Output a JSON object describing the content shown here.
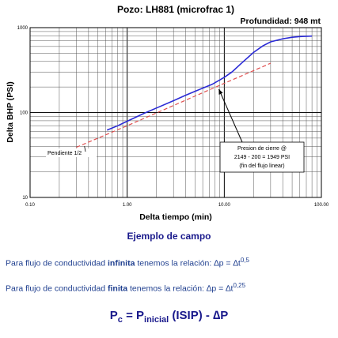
{
  "chart_data": {
    "type": "line",
    "title": "Pozo: LH881 (microfrac 1)",
    "subtitle": "Profundidad: 948 mt",
    "xlabel": "Delta tiempo (min)",
    "ylabel": "Delta BHP (PSI)",
    "xscale": "log",
    "yscale": "log",
    "xlim": [
      0.1,
      100
    ],
    "ylim": [
      10,
      1000
    ],
    "x_tick_labels": [
      "0.10",
      "1.00",
      "10.00",
      "100.00"
    ],
    "y_tick_labels": [
      "1000",
      "100",
      "10"
    ],
    "grid": true,
    "series": [
      {
        "color": "#2b2bd6",
        "style": "solid",
        "x": [
          0.62,
          0.8,
          1.0,
          1.5,
          2.0,
          3.0,
          4.0,
          5.0,
          6.0,
          7.5,
          10.0,
          12.0,
          15.0,
          20.0,
          25.0,
          30.0,
          40.0,
          50.0,
          60.0,
          70.0,
          80.0
        ],
        "y": [
          62,
          70,
          79,
          98,
          113,
          138,
          160,
          178,
          194,
          215,
          260,
          300,
          380,
          510,
          610,
          680,
          740,
          770,
          785,
          792,
          795
        ]
      },
      {
        "color": "#e05050",
        "style": "dashed",
        "x": [
          0.3,
          1.0,
          3.0,
          10.0,
          30.0
        ],
        "y": [
          39,
          70,
          121,
          221,
          381
        ]
      }
    ],
    "annotations": [
      {
        "text": [
          "Presion de cierre @",
          "2149 - 200 = 1949 PSI",
          "(fin del flujo linear)"
        ],
        "x": 8.0,
        "y": 210
      },
      {
        "text": [
          "Pendiente 1/2"
        ],
        "x": 0.35,
        "y": 40
      }
    ]
  },
  "caption": "Ejemplo de campo",
  "line1": {
    "pre": "Para flujo de conductividad ",
    "bold": "infinita",
    "post": " tenemos la relación: ",
    "eq": "∆p = ∆t",
    "exp": "0,5"
  },
  "line2": {
    "pre": "Para flujo de conductividad ",
    "bold": "finita",
    "post": " tenemos la relación: ",
    "eq": "∆p = ∆t",
    "exp": "0,25"
  },
  "formula": {
    "p": "P",
    "c": "c",
    "eq": " = P",
    "inicial": "inicial",
    "rest": " (ISIP) - ∆P"
  },
  "colors": {
    "series_blue": "#2b2bd6",
    "dashed_red": "#e05050",
    "text_blue": "#1a1a8c"
  }
}
